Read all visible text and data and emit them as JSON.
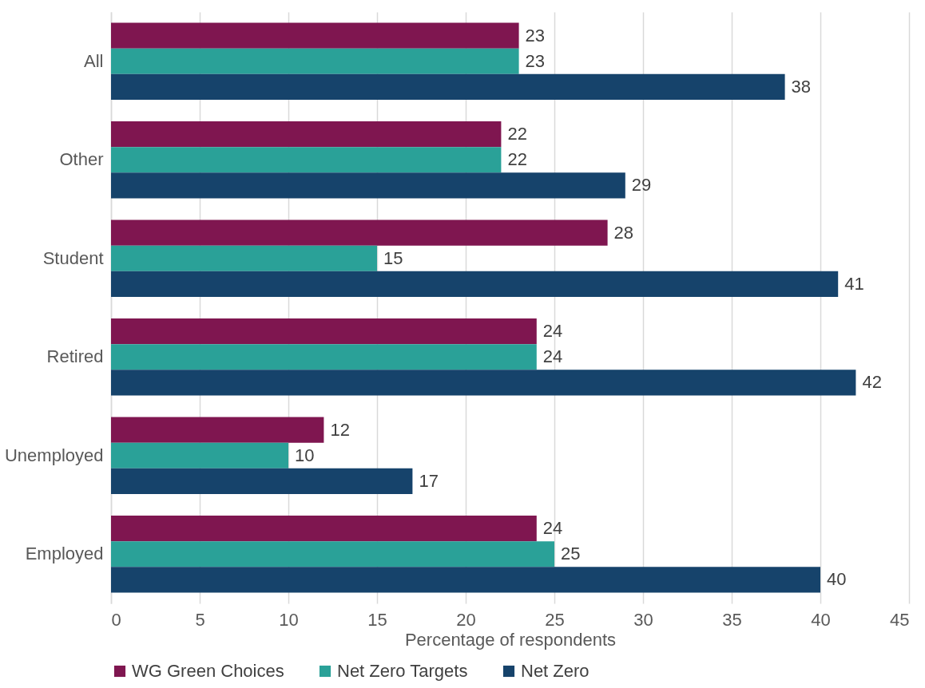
{
  "chart_data": {
    "type": "bar",
    "orientation": "horizontal",
    "xlabel": "Percentage of respondents",
    "categories": [
      "All",
      "Other",
      "Student",
      "Retired",
      "Unemployed",
      "Employed"
    ],
    "series": [
      {
        "name": "WG Green Choices",
        "color": "#7f1650",
        "values": [
          23,
          22,
          28,
          24,
          12,
          24
        ]
      },
      {
        "name": "Net Zero Targets",
        "color": "#2aa198",
        "values": [
          23,
          22,
          15,
          24,
          10,
          25
        ]
      },
      {
        "name": "Net Zero",
        "color": "#16436b",
        "values": [
          38,
          29,
          41,
          42,
          17,
          40
        ]
      }
    ],
    "xlim": [
      0,
      45
    ],
    "xticks": [
      0,
      5,
      10,
      15,
      20,
      25,
      30,
      35,
      40,
      45
    ],
    "grid": "x",
    "legend": "bottom",
    "data_labels": true
  }
}
